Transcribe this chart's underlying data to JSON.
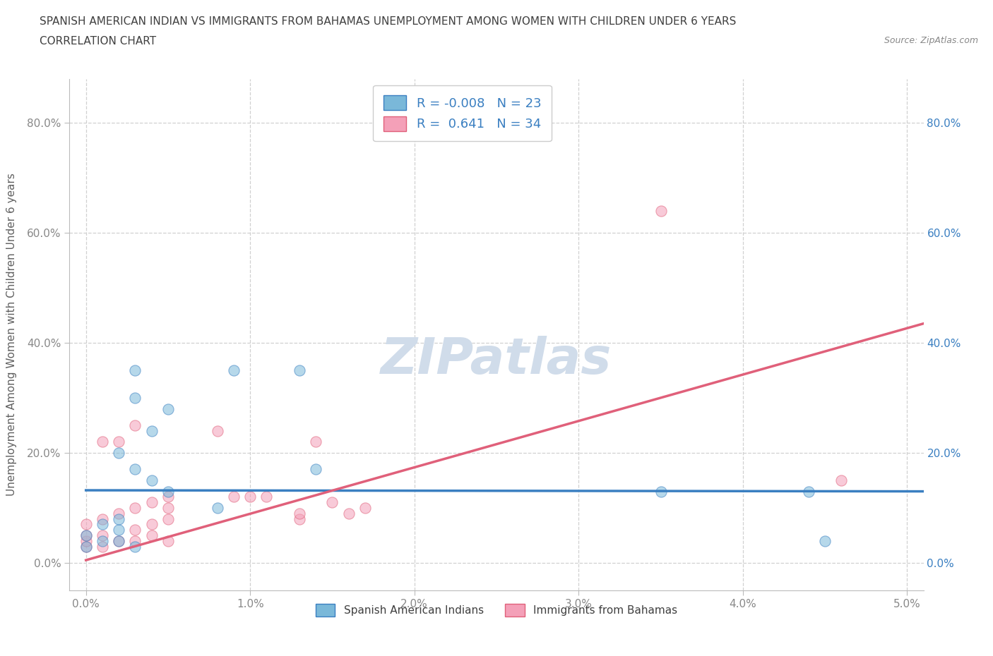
{
  "title_line1": "SPANISH AMERICAN INDIAN VS IMMIGRANTS FROM BAHAMAS UNEMPLOYMENT AMONG WOMEN WITH CHILDREN UNDER 6 YEARS",
  "title_line2": "CORRELATION CHART",
  "source": "Source: ZipAtlas.com",
  "xlabel": "",
  "ylabel": "Unemployment Among Women with Children Under 6 years",
  "xlim": [
    -0.001,
    0.051
  ],
  "ylim": [
    -0.05,
    0.88
  ],
  "xticks": [
    0.0,
    0.01,
    0.02,
    0.03,
    0.04,
    0.05
  ],
  "xtick_labels": [
    "0.0%",
    "1.0%",
    "2.0%",
    "3.0%",
    "4.0%",
    "5.0%"
  ],
  "yticks": [
    0.0,
    0.2,
    0.4,
    0.6,
    0.8
  ],
  "ytick_labels": [
    "0.0%",
    "20.0%",
    "40.0%",
    "60.0%",
    "80.0%"
  ],
  "blue_R": "-0.008",
  "blue_N": "23",
  "pink_R": "0.641",
  "pink_N": "34",
  "legend_label_blue": "Spanish American Indians",
  "legend_label_pink": "Immigrants from Bahamas",
  "blue_color": "#7ab8d9",
  "pink_color": "#f4a0b8",
  "blue_line_color": "#3a7fc1",
  "pink_line_color": "#e0607a",
  "watermark_color": "#d0dcea",
  "blue_scatter_x": [
    0.0,
    0.0,
    0.001,
    0.001,
    0.002,
    0.002,
    0.002,
    0.002,
    0.003,
    0.003,
    0.003,
    0.003,
    0.004,
    0.004,
    0.005,
    0.005,
    0.008,
    0.009,
    0.013,
    0.014,
    0.035,
    0.044,
    0.045
  ],
  "blue_scatter_y": [
    0.03,
    0.05,
    0.04,
    0.07,
    0.04,
    0.06,
    0.08,
    0.2,
    0.03,
    0.17,
    0.3,
    0.35,
    0.15,
    0.24,
    0.13,
    0.28,
    0.1,
    0.35,
    0.35,
    0.17,
    0.13,
    0.13,
    0.04
  ],
  "pink_scatter_x": [
    0.0,
    0.0,
    0.0,
    0.0,
    0.001,
    0.001,
    0.001,
    0.001,
    0.002,
    0.002,
    0.002,
    0.003,
    0.003,
    0.003,
    0.003,
    0.004,
    0.004,
    0.004,
    0.005,
    0.005,
    0.005,
    0.005,
    0.008,
    0.009,
    0.01,
    0.011,
    0.013,
    0.013,
    0.014,
    0.015,
    0.016,
    0.017,
    0.035,
    0.046
  ],
  "pink_scatter_y": [
    0.03,
    0.04,
    0.05,
    0.07,
    0.03,
    0.05,
    0.08,
    0.22,
    0.04,
    0.09,
    0.22,
    0.04,
    0.06,
    0.1,
    0.25,
    0.05,
    0.07,
    0.11,
    0.04,
    0.08,
    0.1,
    0.12,
    0.24,
    0.12,
    0.12,
    0.12,
    0.08,
    0.09,
    0.22,
    0.11,
    0.09,
    0.1,
    0.64,
    0.15
  ],
  "blue_line_x": [
    0.0,
    0.051
  ],
  "blue_line_y": [
    0.132,
    0.13
  ],
  "pink_line_x": [
    0.0,
    0.051
  ],
  "pink_line_y": [
    0.005,
    0.435
  ],
  "background_color": "#ffffff",
  "grid_color": "#d0d0d0",
  "title_color": "#404040",
  "axis_color": "#606060",
  "tick_color": "#888888",
  "right_tick_color": "#3a7fc1"
}
